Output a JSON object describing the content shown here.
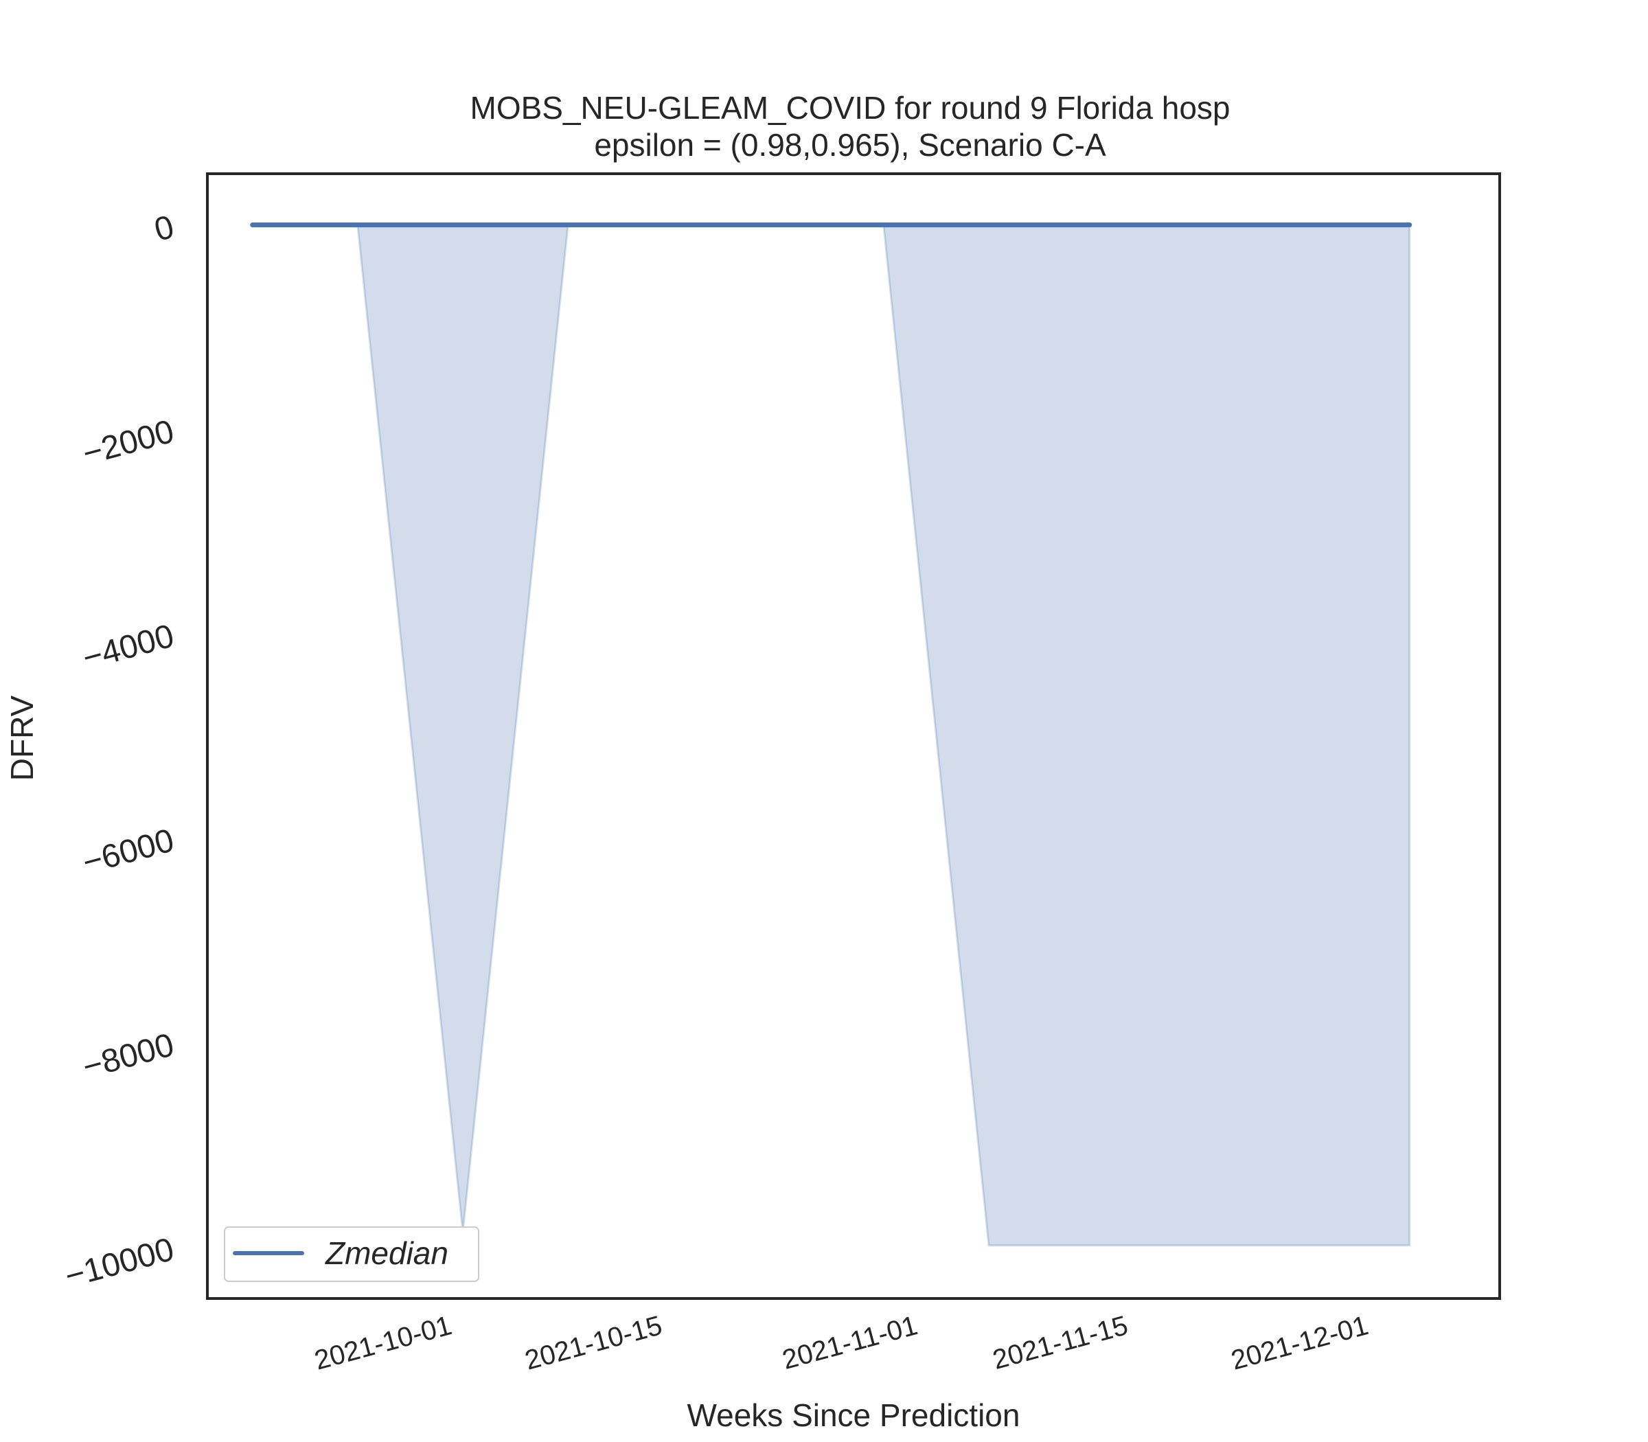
{
  "chart_data": {
    "type": "area",
    "title": "MOBS_NEU-GLEAM_COVID for round 9 Florida  hosp",
    "subtitle": "epsilon = (0.98,0.965), Scenario C-A",
    "xlabel": "Weeks Since Prediction",
    "ylabel": "DFRV",
    "x_ticks": [
      "2021-10-01",
      "2021-10-15",
      "2021-11-01",
      "2021-11-15",
      "2021-12-01"
    ],
    "y_ticks": [
      "0",
      "−2000",
      "−4000",
      "−6000",
      "−8000",
      "−10000"
    ],
    "xlim": [
      "2021-09-15",
      "2021-12-10"
    ],
    "ylim": [
      -10500,
      500
    ],
    "legend": {
      "position": "lower-left",
      "entries": [
        "Zmedian"
      ]
    },
    "grid": false,
    "series": [
      {
        "name": "Zmedian",
        "kind": "line",
        "color": "#4c72b0",
        "x": [
          "2021-09-18",
          "2021-09-25",
          "2021-10-02",
          "2021-10-09",
          "2021-10-16",
          "2021-10-23",
          "2021-10-30",
          "2021-11-06",
          "2021-11-13",
          "2021-11-20",
          "2021-11-27",
          "2021-12-04"
        ],
        "y": [
          0,
          0,
          0,
          0,
          0,
          0,
          0,
          0,
          0,
          0,
          0,
          0
        ]
      }
    ],
    "band": {
      "color": "#4c72b0",
      "opacity": 0.25,
      "x": [
        "2021-09-18",
        "2021-09-25",
        "2021-10-02",
        "2021-10-09",
        "2021-10-16",
        "2021-10-23",
        "2021-10-30",
        "2021-11-06",
        "2021-11-13",
        "2021-11-20",
        "2021-11-27",
        "2021-12-04"
      ],
      "lower": [
        0,
        0,
        -9850,
        0,
        0,
        0,
        0,
        -9980,
        -9980,
        -9980,
        -9980,
        -9980
      ],
      "upper": [
        0,
        0,
        0,
        0,
        0,
        0,
        0,
        0,
        0,
        0,
        0,
        0
      ]
    }
  }
}
